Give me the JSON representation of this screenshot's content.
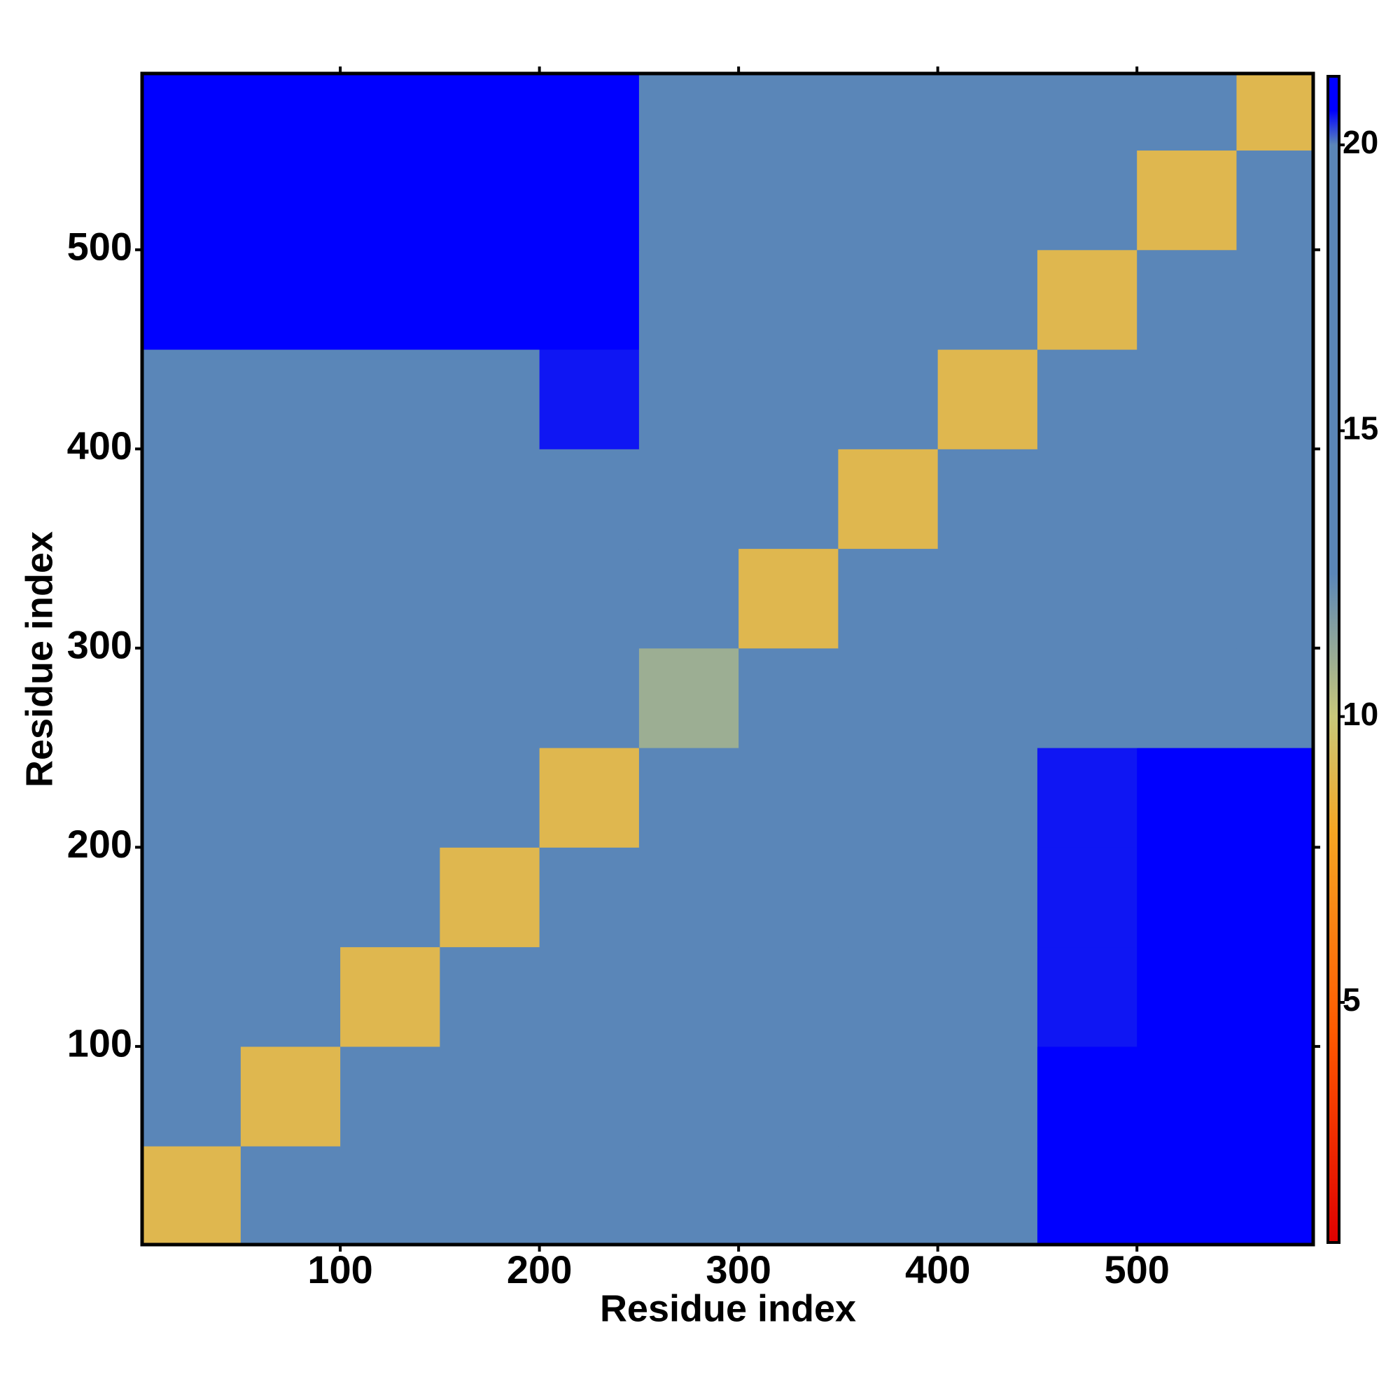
{
  "chart_data": {
    "type": "heatmap",
    "xlabel": "Residue index",
    "ylabel": "Residue index",
    "xbins": [
      0.5,
      50,
      100,
      150,
      200,
      250,
      300,
      350,
      400,
      450,
      500,
      550,
      588.5
    ],
    "ybins": [
      0.5,
      50,
      100,
      150,
      200,
      250,
      300,
      350,
      400,
      450,
      500,
      550,
      588.5
    ],
    "values": [
      [
        9,
        14,
        16,
        16,
        17,
        19.5,
        19.5,
        19.5,
        20,
        21,
        21,
        21
      ],
      [
        14,
        9,
        14,
        16,
        16,
        19.5,
        19.5,
        19.5,
        20,
        21,
        21,
        21
      ],
      [
        16,
        14,
        9,
        14,
        16,
        19,
        19.5,
        19.5,
        20,
        20.5,
        21,
        21
      ],
      [
        16,
        16,
        14,
        9,
        14,
        18,
        19.5,
        19.5,
        20,
        20.5,
        21,
        21
      ],
      [
        17,
        16,
        16,
        14,
        9,
        14,
        19.5,
        19.5,
        20,
        20.5,
        21,
        21
      ],
      [
        20,
        20,
        20,
        19,
        16,
        11,
        16,
        18,
        18,
        18,
        18,
        18
      ],
      [
        19.5,
        19.5,
        19.5,
        19.5,
        19.5,
        16,
        9,
        15,
        16,
        17,
        17,
        17
      ],
      [
        19.5,
        19.5,
        19.5,
        19.5,
        19.5,
        18,
        15,
        9,
        15,
        16,
        17,
        17
      ],
      [
        20,
        20,
        20,
        20,
        20.5,
        18,
        16,
        15,
        9,
        15,
        16,
        17
      ],
      [
        21,
        21,
        21,
        21,
        21,
        18,
        17,
        16,
        15,
        9,
        15,
        16
      ],
      [
        21,
        21,
        21,
        21,
        21,
        18,
        17,
        17,
        16,
        15,
        9,
        15
      ],
      [
        21,
        21,
        21,
        21,
        21,
        18,
        17,
        17,
        17,
        16,
        15,
        9
      ]
    ],
    "xlim": [
      0.5,
      588.5
    ],
    "ylim": [
      0.5,
      588.5
    ],
    "xticks": [
      100,
      200,
      300,
      400,
      500
    ],
    "yticks": [
      100,
      200,
      300,
      400,
      500
    ],
    "zlim": [
      0.8,
      21.2
    ],
    "zticks": [
      5,
      10,
      15,
      20
    ],
    "colorscale": [
      [
        0.8,
        "#e00000"
      ],
      [
        4.5,
        "#ff5a00"
      ],
      [
        8,
        "#f5a623"
      ],
      [
        10,
        "#c8c87a"
      ],
      [
        12.5,
        "#5a86b8"
      ],
      [
        20,
        "#5a86b8"
      ],
      [
        20.6,
        "#0000ff"
      ],
      [
        21.2,
        "#0000ff"
      ]
    ]
  }
}
